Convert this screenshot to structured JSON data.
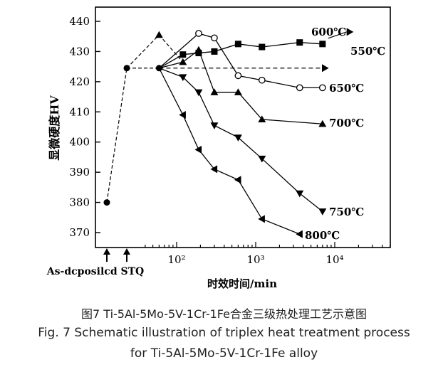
{
  "chart_data": {
    "type": "line",
    "ylabel": "显微硬度HV",
    "xlabel": "时效时间/min",
    "ylim": [
      365,
      443
    ],
    "y_ticks": [
      370,
      380,
      390,
      400,
      410,
      420,
      430,
      440
    ],
    "x_scale": "log",
    "x_ticks": [
      {
        "value": 100,
        "label": "10²"
      },
      {
        "value": 1000,
        "label": "10³"
      },
      {
        "value": 10000,
        "label": "10⁴"
      }
    ],
    "pre_stages": [
      {
        "label": "As-deposited",
        "y": 380,
        "marker": "circle-filled"
      },
      {
        "label": "STQ",
        "y": 424.5,
        "marker": "circle-filled"
      }
    ],
    "axis_annotation": "As-dcposilcd STQ",
    "series": [
      {
        "name": "600℃",
        "marker": "square-filled",
        "x": [
          60,
          120,
          190,
          300,
          600,
          1200,
          3600,
          7000
        ],
        "y": [
          424.5,
          429,
          429.5,
          430,
          432.5,
          431.5,
          433,
          432.5
        ]
      },
      {
        "name": "550℃",
        "marker": "arrow-right",
        "dashed": true,
        "x": [
          60,
          7500
        ],
        "y": [
          424.5,
          424.5
        ]
      },
      {
        "name": "650℃",
        "marker": "circle-open",
        "x": [
          60,
          190,
          300,
          600,
          1200,
          3600,
          7000
        ],
        "y": [
          424.5,
          436,
          434.5,
          422,
          420.5,
          418,
          418
        ]
      },
      {
        "name": "700℃",
        "marker": "triangle-up",
        "x": [
          60,
          120,
          190,
          300,
          600,
          1200,
          7000
        ],
        "y": [
          424.5,
          426.5,
          430.5,
          416.5,
          416.5,
          407.5,
          406
        ]
      },
      {
        "name": "750℃",
        "marker": "triangle-down",
        "x": [
          60,
          120,
          190,
          300,
          600,
          1200,
          3600,
          7000
        ],
        "y": [
          424.5,
          421.5,
          416.5,
          405.5,
          401.5,
          394.5,
          383,
          377
        ]
      },
      {
        "name": "800℃",
        "marker": "triangle-left",
        "x": [
          60,
          120,
          190,
          300,
          600,
          1200,
          3600
        ],
        "y": [
          424.5,
          409,
          397.5,
          391,
          387.5,
          374.5,
          369.5
        ]
      }
    ],
    "dashed_peak": {
      "x": 60,
      "y": 435.5,
      "marker": "triangle-up"
    }
  },
  "caption": {
    "cn": "图7   Ti-5Al-5Mo-5V-1Cr-1Fe合金三级热处理工艺示意图",
    "en_line1": "Fig. 7 Schematic illustration of triplex heat treatment process",
    "en_line2": "for Ti-5Al-5Mo-5V-1Cr-1Fe alloy"
  }
}
